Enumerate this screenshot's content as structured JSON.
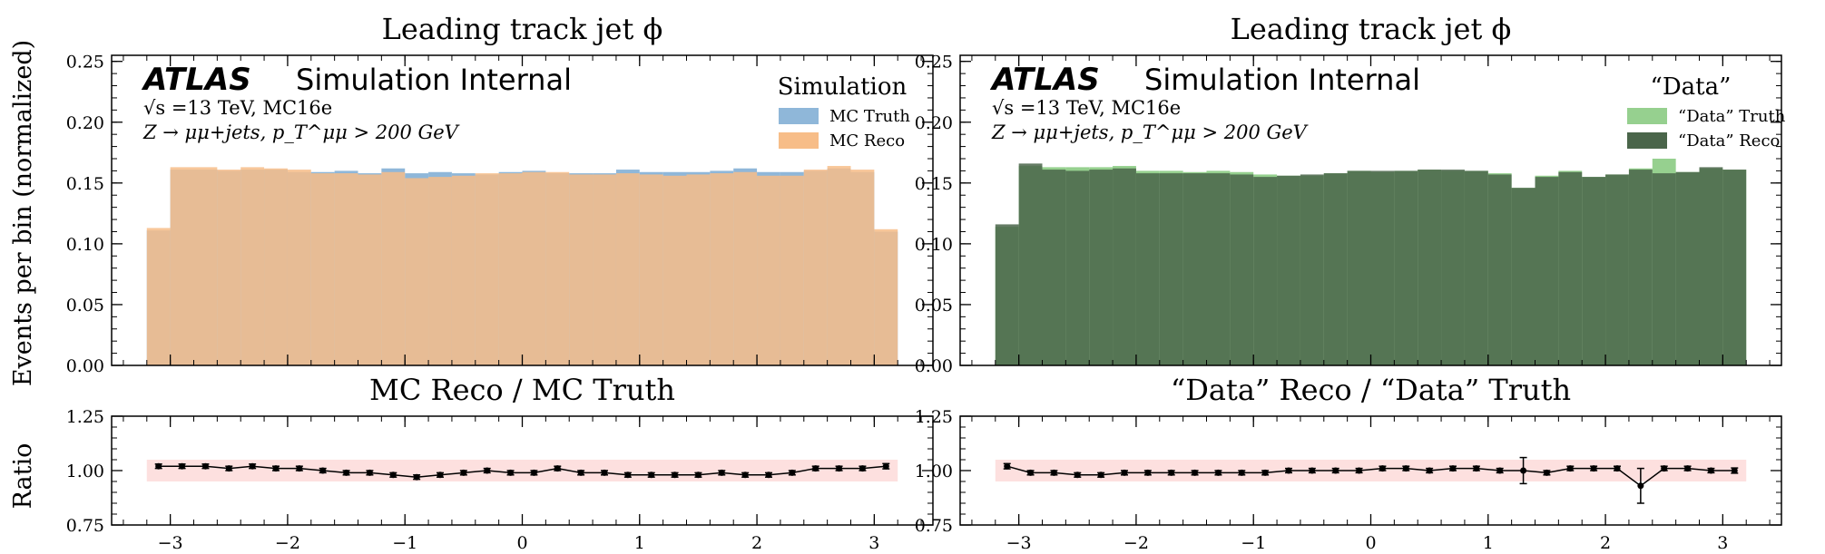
{
  "figure": {
    "ylabel_main": "Events per bin (normalized)",
    "ylabel_ratio": "Ratio"
  },
  "chart_data": [
    {
      "id": "left-main",
      "type": "bar",
      "title": "Leading track jet ϕ",
      "ylim": [
        0,
        0.255
      ],
      "yticks": [
        0.0,
        0.05,
        0.1,
        0.15,
        0.2,
        0.25
      ],
      "ytick_labels": [
        "0.00",
        "0.05",
        "0.10",
        "0.15",
        "0.20",
        "0.25"
      ],
      "xlim": [
        -3.5,
        3.5
      ],
      "bin_edges": [
        -3.2,
        -3.0,
        -2.8,
        -2.6,
        -2.4,
        -2.2,
        -2.0,
        -1.8,
        -1.6,
        -1.4,
        -1.2,
        -1.0,
        -0.8,
        -0.6,
        -0.4,
        -0.2,
        0.0,
        0.2,
        0.4,
        0.6,
        0.8,
        1.0,
        1.2,
        1.4,
        1.6,
        1.8,
        2.0,
        2.2,
        2.4,
        2.6,
        2.8,
        3.0,
        3.2
      ],
      "atlas": {
        "logo": "ATLAS",
        "label": "Simulation Internal",
        "line1": "√s =13 TeV, MC16e",
        "line2": "Z → μμ+jets, p_T^μμ > 200 GeV"
      },
      "legend": {
        "title": "Simulation",
        "position": "top-right"
      },
      "series": [
        {
          "name": "MC Truth",
          "color": "#8fb7d9",
          "values": [
            0.111,
            0.161,
            0.161,
            0.16,
            0.161,
            0.161,
            0.159,
            0.159,
            0.16,
            0.158,
            0.162,
            0.158,
            0.159,
            0.158,
            0.157,
            0.159,
            0.16,
            0.158,
            0.158,
            0.158,
            0.161,
            0.159,
            0.159,
            0.159,
            0.16,
            0.162,
            0.159,
            0.159,
            0.16,
            0.162,
            0.159,
            0.11
          ]
        },
        {
          "name": "MC Reco",
          "color": "#f7bd88",
          "values": [
            0.113,
            0.163,
            0.163,
            0.161,
            0.163,
            0.162,
            0.161,
            0.158,
            0.158,
            0.157,
            0.159,
            0.154,
            0.155,
            0.156,
            0.158,
            0.158,
            0.159,
            0.159,
            0.157,
            0.157,
            0.158,
            0.157,
            0.156,
            0.157,
            0.158,
            0.159,
            0.156,
            0.156,
            0.161,
            0.164,
            0.161,
            0.112
          ]
        }
      ]
    },
    {
      "id": "right-main",
      "type": "bar",
      "title": "Leading track jet ϕ",
      "ylim": [
        0,
        0.255
      ],
      "yticks": [
        0.0,
        0.05,
        0.1,
        0.15,
        0.2,
        0.25
      ],
      "ytick_labels": [
        "0.00",
        "0.05",
        "0.10",
        "0.15",
        "0.20",
        "0.25"
      ],
      "xlim": [
        -3.5,
        3.5
      ],
      "bin_edges": [
        -3.2,
        -3.0,
        -2.8,
        -2.6,
        -2.4,
        -2.2,
        -2.0,
        -1.8,
        -1.6,
        -1.4,
        -1.2,
        -1.0,
        -0.8,
        -0.6,
        -0.4,
        -0.2,
        0.0,
        0.2,
        0.4,
        0.6,
        0.8,
        1.0,
        1.2,
        1.4,
        1.6,
        1.8,
        2.0,
        2.2,
        2.4,
        2.6,
        2.8,
        3.0,
        3.2
      ],
      "atlas": {
        "logo": "ATLAS",
        "label": "Simulation Internal",
        "line1": "√s =13 TeV, MC16e",
        "line2": "Z → μμ+jets, p_T^μμ > 200 GeV"
      },
      "legend": {
        "title": "“Data”",
        "position": "top-right"
      },
      "series": [
        {
          "name": "“Data” Truth",
          "color": "#96d08f",
          "values": [
            0.114,
            0.164,
            0.163,
            0.163,
            0.163,
            0.164,
            0.16,
            0.16,
            0.159,
            0.16,
            0.159,
            0.157,
            0.156,
            0.156,
            0.158,
            0.16,
            0.159,
            0.16,
            0.161,
            0.16,
            0.16,
            0.158,
            0.146,
            0.156,
            0.16,
            0.155,
            0.157,
            0.162,
            0.17,
            0.159,
            0.162,
            0.161
          ]
        },
        {
          "name": "“Data” Reco",
          "color": "#4a654a",
          "values": [
            0.116,
            0.166,
            0.161,
            0.16,
            0.161,
            0.162,
            0.158,
            0.158,
            0.158,
            0.158,
            0.157,
            0.155,
            0.156,
            0.157,
            0.158,
            0.16,
            0.16,
            0.16,
            0.161,
            0.161,
            0.16,
            0.157,
            0.146,
            0.155,
            0.159,
            0.155,
            0.157,
            0.161,
            0.158,
            0.159,
            0.163,
            0.161
          ]
        }
      ]
    },
    {
      "id": "left-ratio",
      "type": "scatter",
      "title": "MC Reco / MC Truth",
      "ylim": [
        0.75,
        1.25
      ],
      "yticks": [
        0.75,
        1.0,
        1.25
      ],
      "ytick_labels": [
        "0.75",
        "1.00",
        "1.25"
      ],
      "xlim": [
        -3.5,
        3.5
      ],
      "xticks": [
        -3,
        -2,
        -1,
        0,
        1,
        2,
        3
      ],
      "xtick_labels": [
        "−3",
        "−2",
        "−1",
        "0",
        "1",
        "2",
        "3"
      ],
      "band": {
        "low": 0.95,
        "high": 1.05,
        "color": "#fde0df"
      },
      "x": [
        -3.1,
        -2.9,
        -2.7,
        -2.5,
        -2.3,
        -2.1,
        -1.9,
        -1.7,
        -1.5,
        -1.3,
        -1.1,
        -0.9,
        -0.7,
        -0.5,
        -0.3,
        -0.1,
        0.1,
        0.3,
        0.5,
        0.7,
        0.9,
        1.1,
        1.3,
        1.5,
        1.7,
        1.9,
        2.1,
        2.3,
        2.5,
        2.7,
        2.9,
        3.1
      ],
      "values": [
        1.02,
        1.02,
        1.02,
        1.01,
        1.02,
        1.01,
        1.01,
        1.0,
        0.99,
        0.99,
        0.98,
        0.97,
        0.98,
        0.99,
        1.0,
        0.99,
        0.99,
        1.01,
        0.99,
        0.99,
        0.98,
        0.98,
        0.98,
        0.98,
        0.99,
        0.98,
        0.98,
        0.99,
        1.01,
        1.01,
        1.01,
        1.02
      ],
      "errors": [
        0.01,
        0.01,
        0.01,
        0.01,
        0.01,
        0.01,
        0.01,
        0.01,
        0.01,
        0.01,
        0.01,
        0.01,
        0.01,
        0.01,
        0.01,
        0.01,
        0.01,
        0.01,
        0.01,
        0.01,
        0.01,
        0.01,
        0.01,
        0.01,
        0.01,
        0.01,
        0.01,
        0.01,
        0.01,
        0.01,
        0.01,
        0.012
      ]
    },
    {
      "id": "right-ratio",
      "type": "scatter",
      "title": "“Data” Reco / “Data” Truth",
      "ylim": [
        0.75,
        1.25
      ],
      "yticks": [
        0.75,
        1.0,
        1.25
      ],
      "ytick_labels": [
        "0.75",
        "1.00",
        "1.25"
      ],
      "xlim": [
        -3.5,
        3.5
      ],
      "xticks": [
        -3,
        -2,
        -1,
        0,
        1,
        2,
        3
      ],
      "xtick_labels": [
        "−3",
        "−2",
        "−1",
        "0",
        "1",
        "2",
        "3"
      ],
      "band": {
        "low": 0.95,
        "high": 1.05,
        "color": "#fde0df"
      },
      "x": [
        -3.1,
        -2.9,
        -2.7,
        -2.5,
        -2.3,
        -2.1,
        -1.9,
        -1.7,
        -1.5,
        -1.3,
        -1.1,
        -0.9,
        -0.7,
        -0.5,
        -0.3,
        -0.1,
        0.1,
        0.3,
        0.5,
        0.7,
        0.9,
        1.1,
        1.3,
        1.5,
        1.7,
        1.9,
        2.1,
        2.3,
        2.5,
        2.7,
        2.9,
        3.1
      ],
      "values": [
        1.02,
        0.99,
        0.99,
        0.98,
        0.98,
        0.99,
        0.99,
        0.99,
        0.99,
        0.99,
        0.99,
        0.99,
        1.0,
        1.0,
        1.0,
        1.0,
        1.01,
        1.01,
        1.0,
        1.01,
        1.01,
        1.0,
        1.0,
        0.99,
        1.01,
        1.01,
        1.01,
        0.93,
        1.01,
        1.01,
        1.0,
        1.0
      ],
      "errors": [
        0.012,
        0.01,
        0.01,
        0.01,
        0.01,
        0.01,
        0.01,
        0.01,
        0.01,
        0.01,
        0.01,
        0.01,
        0.01,
        0.01,
        0.01,
        0.01,
        0.01,
        0.01,
        0.01,
        0.01,
        0.01,
        0.01,
        0.06,
        0.01,
        0.01,
        0.01,
        0.01,
        0.08,
        0.01,
        0.01,
        0.01,
        0.012
      ]
    }
  ]
}
